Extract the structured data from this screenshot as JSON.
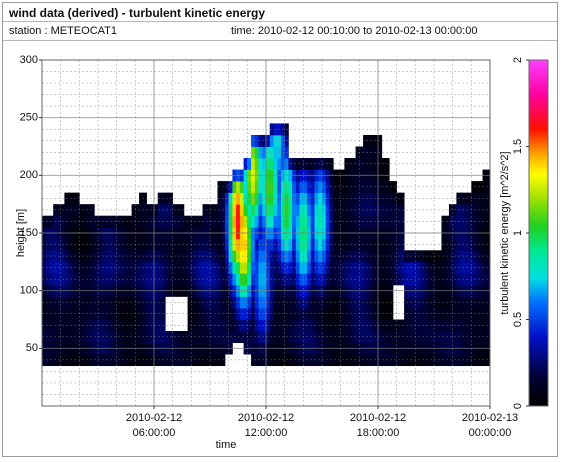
{
  "header": {
    "title": "wind data (derived) - turbulent kinetic energy",
    "station": "station : METEOCAT1",
    "time_range": "time: 2010-02-12 00:10:00 to 2010-02-13 00:00:00"
  },
  "chart_data": {
    "type": "heatmap",
    "title": "wind data (derived) - turbulent kinetic energy",
    "xlabel": "time",
    "ylabel": "height [m]",
    "colorbar_label": "turbulent kinetic energy [m^2/s^2]",
    "xlim_hours": [
      0,
      24
    ],
    "ylim": [
      0,
      300
    ],
    "yticks": [
      50,
      100,
      150,
      200,
      250,
      300
    ],
    "colorbar_range": [
      0,
      2
    ],
    "colorbar_ticks": [
      "0",
      "0.5",
      "1",
      "1.5",
      "2"
    ],
    "xticks": [
      {
        "hour": 6,
        "line1": "2010-02-12",
        "line2": "06:00:00"
      },
      {
        "hour": 12,
        "line1": "2010-02-12",
        "line2": "12:00:00"
      },
      {
        "hour": 18,
        "line1": "2010-02-12",
        "line2": "18:00:00"
      },
      {
        "hour": 24,
        "line1": "2010-02-13",
        "line2": "00:00:00"
      }
    ],
    "bottom_height": 35,
    "top_height_profile": [
      [
        0.0,
        165
      ],
      [
        0.7,
        175
      ],
      [
        1.2,
        185
      ],
      [
        2.0,
        175
      ],
      [
        2.8,
        165
      ],
      [
        4.2,
        165
      ],
      [
        4.9,
        175
      ],
      [
        5.3,
        185
      ],
      [
        5.6,
        175
      ],
      [
        6.2,
        185
      ],
      [
        7.0,
        175
      ],
      [
        7.6,
        165
      ],
      [
        8.6,
        175
      ],
      [
        9.4,
        195
      ],
      [
        10.1,
        205
      ],
      [
        10.7,
        215
      ],
      [
        11.2,
        235
      ],
      [
        12.2,
        245
      ],
      [
        13.2,
        215
      ],
      [
        15.0,
        215
      ],
      [
        15.6,
        205
      ],
      [
        16.2,
        215
      ],
      [
        16.8,
        225
      ],
      [
        17.2,
        235
      ],
      [
        18.2,
        215
      ],
      [
        18.6,
        195
      ],
      [
        19.0,
        185
      ],
      [
        19.3,
        135
      ],
      [
        21.4,
        165
      ],
      [
        21.8,
        175
      ],
      [
        22.2,
        185
      ],
      [
        22.9,
        195
      ],
      [
        23.6,
        205
      ],
      [
        24.0,
        215
      ]
    ],
    "gaps": [
      {
        "hours": [
          6.6,
          7.8
        ],
        "heights": [
          65,
          95
        ]
      },
      {
        "hours": [
          18.8,
          19.3
        ],
        "heights": [
          75,
          105
        ]
      },
      {
        "hours": [
          9.8,
          11.2
        ],
        "heights": [
          35,
          45
        ]
      },
      {
        "hours": [
          10.2,
          10.8
        ],
        "heights": [
          45,
          55
        ]
      }
    ],
    "hotspots": [
      {
        "hour": 10.5,
        "height": 160,
        "value": 1.65
      },
      {
        "hour": 10.8,
        "height": 140,
        "value": 1.45
      },
      {
        "hour": 11.3,
        "height": 200,
        "value": 1.3
      },
      {
        "hour": 12.2,
        "height": 190,
        "value": 1.1
      },
      {
        "hour": 13.1,
        "height": 170,
        "value": 1.05
      },
      {
        "hour": 14.0,
        "height": 150,
        "value": 0.95
      },
      {
        "hour": 14.9,
        "height": 160,
        "value": 0.85
      },
      {
        "hour": 12.6,
        "height": 230,
        "value": 0.75
      },
      {
        "hour": 11.8,
        "height": 110,
        "value": 0.7
      }
    ],
    "background_value": 0.1
  }
}
